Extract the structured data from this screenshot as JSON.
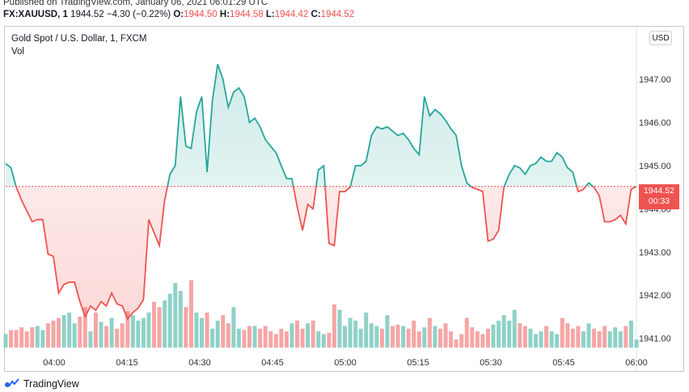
{
  "header": {
    "published": "Published on TradingView.com, January 06, 2021 06:01:29 UTC",
    "symbol": "FX:XAUUSD, 1",
    "last": "1944.52",
    "change": "−4.30 (−0.22%)",
    "o_label": "O:",
    "o_value": "1944.50",
    "h_label": "H:",
    "h_value": "1944.58",
    "l_label": "L:",
    "l_value": "1944.42",
    "c_label": "C:",
    "c_value": "1944.52"
  },
  "chart": {
    "title": "Gold Spot / U.S. Dollar, 1, FXCM",
    "vol_label": "Vol",
    "currency": "USD",
    "price_label": "1944.52",
    "countdown": "00:33"
  },
  "branding": {
    "name": "TradingView"
  },
  "colors": {
    "up": "#26a69a",
    "down": "#ef5350",
    "baseline": "#ef5350",
    "vol_up": "#8fd1c7",
    "vol_down": "#f6a5a5"
  },
  "chart_data": {
    "type": "area",
    "title": "Gold Spot / U.S. Dollar, 1, FXCM",
    "baseline": 1944.52,
    "xlabel": "",
    "ylabel": "USD",
    "ylim": [
      1940.75,
      1948.2
    ],
    "yticks": [
      "1941.00",
      "1942.00",
      "1943.00",
      "1944.00",
      "1945.00",
      "1946.00",
      "1947.00"
    ],
    "xticks": [
      "04:00",
      "04:15",
      "04:30",
      "04:45",
      "05:00",
      "05:15",
      "05:30",
      "05:45",
      "06:00"
    ],
    "x_start_minute": -10,
    "x_end_minute": 120,
    "prices": [
      1945.05,
      1944.95,
      1944.5,
      1944.2,
      1943.95,
      1943.7,
      1943.75,
      1943.75,
      1942.95,
      1942.9,
      1942.05,
      1942.25,
      1942.3,
      1942.3,
      1941.85,
      1941.5,
      1941.75,
      1941.65,
      1941.85,
      1941.75,
      1942.05,
      1941.8,
      1941.75,
      1941.45,
      1941.6,
      1941.7,
      1941.9,
      1943.75,
      1943.45,
      1943.15,
      1944.2,
      1944.8,
      1945.0,
      1946.6,
      1945.45,
      1945.4,
      1946.25,
      1946.6,
      1944.85,
      1946.5,
      1947.35,
      1947.0,
      1946.35,
      1946.7,
      1946.8,
      1946.6,
      1946.0,
      1946.1,
      1945.9,
      1945.6,
      1945.45,
      1945.3,
      1945.0,
      1944.7,
      1944.7,
      1944.05,
      1943.5,
      1944.1,
      1944.0,
      1944.9,
      1945.0,
      1943.2,
      1943.15,
      1944.4,
      1944.4,
      1944.5,
      1945.0,
      1945.0,
      1945.1,
      1945.7,
      1945.9,
      1945.85,
      1945.9,
      1945.8,
      1945.7,
      1945.75,
      1945.6,
      1945.4,
      1945.25,
      1946.6,
      1946.15,
      1946.3,
      1946.2,
      1946.05,
      1945.85,
      1945.7,
      1945.0,
      1944.6,
      1944.5,
      1944.45,
      1944.4,
      1943.25,
      1943.3,
      1943.5,
      1944.5,
      1944.8,
      1945.0,
      1944.95,
      1944.8,
      1945.0,
      1945.05,
      1945.2,
      1945.1,
      1945.1,
      1945.3,
      1945.2,
      1944.95,
      1944.85,
      1944.4,
      1944.45,
      1944.6,
      1944.5,
      1944.3,
      1943.7,
      1943.7,
      1943.75,
      1943.85,
      1943.65,
      1944.45,
      1944.52
    ],
    "volume": [
      10,
      13,
      13,
      15,
      12,
      15,
      16,
      13,
      18,
      20,
      22,
      24,
      26,
      18,
      23,
      30,
      12,
      26,
      19,
      16,
      22,
      14,
      18,
      27,
      24,
      20,
      22,
      26,
      34,
      30,
      35,
      40,
      48,
      42,
      30,
      50,
      26,
      22,
      26,
      14,
      20,
      24,
      18,
      30,
      14,
      13,
      16,
      16,
      14,
      16,
      12,
      10,
      14,
      12,
      18,
      20,
      14,
      18,
      20,
      12,
      10,
      11,
      32,
      28,
      16,
      22,
      20,
      14,
      26,
      18,
      16,
      14,
      24,
      16,
      17,
      16,
      14,
      20,
      12,
      15,
      22,
      16,
      14,
      18,
      12,
      6,
      10,
      22,
      15,
      12,
      10,
      14,
      17,
      20,
      24,
      20,
      28,
      18,
      16,
      14,
      10,
      12,
      16,
      12,
      10,
      22,
      18,
      14,
      16,
      12,
      18,
      14,
      12,
      16,
      12,
      15,
      12,
      16,
      20,
      6
    ]
  }
}
